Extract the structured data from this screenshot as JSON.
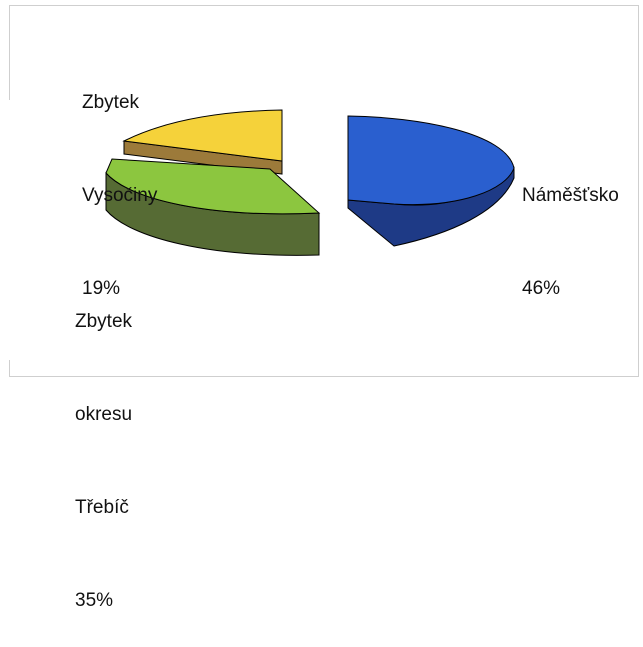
{
  "chart_data": {
    "type": "pie",
    "title": "",
    "three_d": true,
    "exploded": true,
    "slices": [
      {
        "label_lines": [
          "Náměšťsko",
          "46%"
        ],
        "value": 46,
        "color": "#2a5fcf",
        "side_color": "#1e3a86"
      },
      {
        "label_lines": [
          "Zbytek",
          "okresu",
          "Třebíč",
          "35%"
        ],
        "value": 35,
        "color": "#8cc63f",
        "side_color": "#566b34"
      },
      {
        "label_lines": [
          "Zbytek",
          "Vysočiny",
          "19%"
        ],
        "value": 19,
        "color": "#f5d23a",
        "side_color": "#9c7a3a"
      }
    ]
  }
}
